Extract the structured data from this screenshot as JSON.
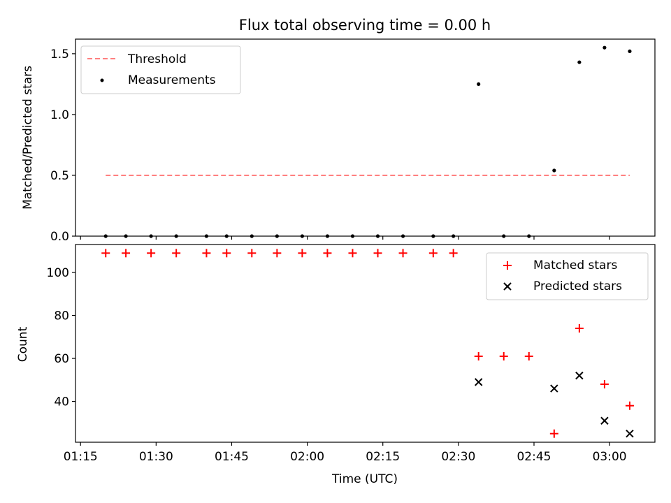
{
  "chart_data": [
    {
      "type": "scatter",
      "title": "Flux total observing time = 0.00 h",
      "xlabel": "",
      "ylabel": "Matched/Predicted stars",
      "ylim": [
        0,
        1.62
      ],
      "yticks": [
        0.0,
        0.5,
        1.0,
        1.5
      ],
      "ytick_labels": [
        "0.0",
        "0.5",
        "1.0",
        "1.5"
      ],
      "legend_position": "upper-left",
      "threshold": {
        "name": "Threshold",
        "value": 0.5,
        "x_range": [
          "01:20",
          "03:04"
        ],
        "color": "#ff8080",
        "style": "dashed"
      },
      "series": [
        {
          "name": "Measurements",
          "marker": "dot",
          "color": "#000000",
          "x": [
            "01:20",
            "01:24",
            "01:29",
            "01:34",
            "01:40",
            "01:44",
            "01:49",
            "01:54",
            "01:59",
            "02:04",
            "02:09",
            "02:14",
            "02:19",
            "02:25",
            "02:29",
            "02:34",
            "02:39",
            "02:44",
            "02:49",
            "02:54",
            "02:59",
            "03:04"
          ],
          "y": [
            0,
            0,
            0,
            0,
            0,
            0,
            0,
            0,
            0,
            0,
            0,
            0,
            0,
            0,
            0,
            1.25,
            0,
            0,
            0.54,
            1.43,
            1.55,
            1.52
          ]
        }
      ]
    },
    {
      "type": "scatter",
      "title": "",
      "xlabel": "Time (UTC)",
      "ylabel": "Count",
      "ylim": [
        21,
        113
      ],
      "yticks": [
        40,
        60,
        80,
        100
      ],
      "ytick_labels": [
        "40",
        "60",
        "80",
        "100"
      ],
      "x_domain": [
        "01:14",
        "03:09"
      ],
      "xticks": [
        "01:15",
        "01:30",
        "01:45",
        "02:00",
        "02:15",
        "02:30",
        "02:45",
        "03:00"
      ],
      "legend_position": "upper-right",
      "series": [
        {
          "name": "Matched stars",
          "marker": "plus",
          "color": "#ff0000",
          "x": [
            "01:20",
            "01:24",
            "01:29",
            "01:34",
            "01:40",
            "01:44",
            "01:49",
            "01:54",
            "01:59",
            "02:04",
            "02:09",
            "02:14",
            "02:19",
            "02:25",
            "02:29",
            "02:34",
            "02:39",
            "02:44",
            "02:49",
            "02:54",
            "02:59",
            "03:04"
          ],
          "y": [
            109,
            109,
            109,
            109,
            109,
            109,
            109,
            109,
            109,
            109,
            109,
            109,
            109,
            109,
            109,
            61,
            61,
            61,
            25,
            74,
            48,
            38
          ]
        },
        {
          "name": "Predicted stars",
          "marker": "x",
          "color": "#000000",
          "x": [
            "02:34",
            "02:49",
            "02:54",
            "02:59",
            "03:04"
          ],
          "y": [
            49,
            46,
            52,
            31,
            25
          ]
        }
      ]
    }
  ]
}
